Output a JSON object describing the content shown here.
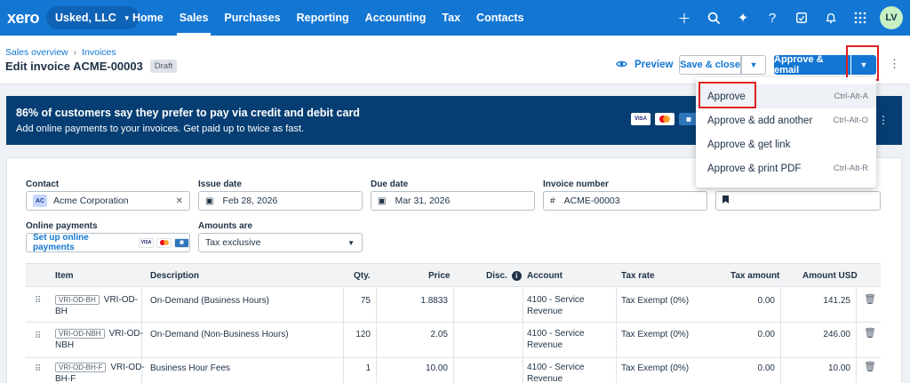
{
  "nav": {
    "logo": "xero",
    "org": "Usked, LLC",
    "links": [
      "Home",
      "Sales",
      "Purchases",
      "Reporting",
      "Accounting",
      "Tax",
      "Contacts"
    ],
    "active": "Sales",
    "avatar": "LV",
    "icons": [
      "plus-icon",
      "search-icon",
      "sparkle-icon",
      "help-icon",
      "notes-icon",
      "bell-icon",
      "apps-grid-icon"
    ]
  },
  "header": {
    "breadcrumb": [
      "Sales overview",
      "Invoices"
    ],
    "title": "Edit invoice ACME-00003",
    "status": "Draft",
    "preview": "Preview",
    "save_close": "Save & close",
    "approve_email": "Approve & email"
  },
  "banner": {
    "title": "86% of customers say they prefer to pay via credit and debit card",
    "subtitle": "Add online payments to your invoices. Get paid up to twice as fast.",
    "cards": [
      "VISA",
      "Mastercard",
      "AMEX"
    ]
  },
  "menu": {
    "items": [
      {
        "label": "Approve",
        "shortcut": "Ctrl-Alt-A"
      },
      {
        "label": "Approve & add another",
        "shortcut": "Ctrl-Alt-O"
      },
      {
        "label": "Approve & get link",
        "shortcut": ""
      },
      {
        "label": "Approve & print PDF",
        "shortcut": "Ctrl-Alt-R"
      }
    ]
  },
  "form": {
    "contact_label": "Contact",
    "contact_initials": "AC",
    "contact_value": "Acme Corporation",
    "issue_label": "Issue date",
    "issue_value": "Feb 28, 2026",
    "due_label": "Due date",
    "due_value": "Mar 31, 2026",
    "number_label": "Invoice number",
    "number_value": "ACME-00003",
    "online_label": "Online payments",
    "online_link": "Set up online payments",
    "amounts_label": "Amounts are",
    "amounts_value": "Tax exclusive"
  },
  "table": {
    "headers": {
      "item": "Item",
      "description": "Description",
      "qty": "Qty.",
      "price": "Price",
      "disc": "Disc.",
      "account": "Account",
      "tax_rate": "Tax rate",
      "tax_amount": "Tax amount",
      "amount": "Amount USD"
    },
    "rows": [
      {
        "code": "VRI-OD-BH",
        "item1": "VRI-OD-",
        "item2": "BH",
        "description": "On-Demand (Business Hours)",
        "qty": "75",
        "price": "1.8833",
        "account1": "4100 - Service",
        "account2": "Revenue",
        "tax_rate": "Tax Exempt (0%)",
        "tax_amount": "0.00",
        "amount": "141.25"
      },
      {
        "code": "VRI-OD-NBH",
        "item1": "VRI-OD-",
        "item2": "NBH",
        "description": "On-Demand (Non-Business Hours)",
        "qty": "120",
        "price": "2.05",
        "account1": "4100 - Service",
        "account2": "Revenue",
        "tax_rate": "Tax Exempt (0%)",
        "tax_amount": "0.00",
        "amount": "246.00"
      },
      {
        "code": "VRI-OD-BH-F",
        "item1": "VRI-OD-",
        "item2": "BH-F",
        "description": "Business Hour Fees",
        "qty": "1",
        "price": "10.00",
        "account1": "4100 - Service",
        "account2": "Revenue",
        "tax_rate": "Tax Exempt (0%)",
        "tax_amount": "0.00",
        "amount": "10.00"
      }
    ]
  }
}
